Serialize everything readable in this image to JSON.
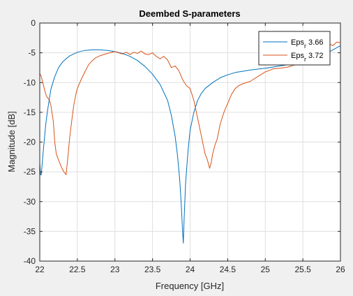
{
  "chart_data": {
    "type": "line",
    "title": "Deembed S-parameters",
    "xlabel": "Frequency [GHz]",
    "ylabel": "Magnitude [dB]",
    "xlim": [
      22,
      26
    ],
    "ylim": [
      -40,
      0
    ],
    "xticks": [
      22,
      22.5,
      23,
      23.5,
      24,
      24.5,
      25,
      25.5,
      26
    ],
    "yticks": [
      0,
      -5,
      -10,
      -15,
      -20,
      -25,
      -30,
      -35,
      -40
    ],
    "xtick_labels": [
      "22",
      "22.5",
      "23",
      "23.5",
      "24",
      "24.5",
      "25",
      "25.5",
      "26"
    ],
    "ytick_labels": [
      "0",
      "-5",
      "-10",
      "-15",
      "-20",
      "-25",
      "-30",
      "-35",
      "-40"
    ],
    "grid": true,
    "legend_position": "top-right",
    "series": [
      {
        "name_main": "Eps",
        "name_sub": "r",
        "name_value": " 3.66",
        "color": "#0072BD",
        "x": [
          22,
          22.01,
          22.02,
          22.03,
          22.05,
          22.08,
          22.1,
          22.13,
          22.15,
          22.2,
          22.25,
          22.3,
          22.35,
          22.4,
          22.5,
          22.6,
          22.7,
          22.8,
          22.9,
          23,
          23.1,
          23.2,
          23.3,
          23.4,
          23.5,
          23.6,
          23.7,
          23.75,
          23.8,
          23.83,
          23.86,
          23.88,
          23.9,
          23.91,
          23.92,
          23.94,
          23.96,
          23.98,
          24,
          24.05,
          24.1,
          24.15,
          24.2,
          24.3,
          24.4,
          24.5,
          24.6,
          24.7,
          24.8,
          25,
          25.2,
          25.4,
          25.6,
          25.8,
          26
        ],
        "y": [
          -23.5,
          -25.5,
          -25.5,
          -24,
          -21,
          -17,
          -15,
          -12.5,
          -11,
          -9,
          -7.5,
          -6.6,
          -6,
          -5.5,
          -4.9,
          -4.6,
          -4.5,
          -4.5,
          -4.6,
          -4.8,
          -5.1,
          -5.6,
          -6.3,
          -7.3,
          -8.6,
          -10.3,
          -13,
          -15.5,
          -19,
          -22,
          -26,
          -30,
          -35,
          -37,
          -33,
          -27,
          -23.5,
          -20.5,
          -18,
          -15,
          -13,
          -11.8,
          -11,
          -10,
          -9.2,
          -8.7,
          -8.3,
          -8.1,
          -7.9,
          -7.6,
          -7.2,
          -6.8,
          -6.2,
          -5.2,
          -3.8
        ]
      },
      {
        "name_main": "Eps",
        "name_sub": "r",
        "name_value": " 3.72",
        "color": "#D95319",
        "x": [
          22,
          22.02,
          22.05,
          22.08,
          22.1,
          22.13,
          22.15,
          22.18,
          22.2,
          22.22,
          22.25,
          22.28,
          22.3,
          22.32,
          22.34,
          22.35,
          22.37,
          22.4,
          22.43,
          22.45,
          22.48,
          22.5,
          22.55,
          22.6,
          22.65,
          22.7,
          22.75,
          22.8,
          22.9,
          23,
          23.05,
          23.1,
          23.15,
          23.2,
          23.25,
          23.3,
          23.35,
          23.4,
          23.45,
          23.5,
          23.55,
          23.6,
          23.65,
          23.7,
          23.75,
          23.8,
          23.85,
          23.9,
          23.95,
          24,
          24.05,
          24.1,
          24.15,
          24.2,
          24.23,
          24.26,
          24.28,
          24.3,
          24.33,
          24.36,
          24.4,
          24.45,
          24.5,
          24.55,
          24.6,
          24.65,
          24.7,
          24.8,
          24.9,
          25,
          25.05,
          25.1,
          25.2,
          25.3,
          25.4,
          25.5,
          25.6,
          25.7,
          25.8,
          25.85,
          25.9,
          25.95,
          26
        ],
        "y": [
          -8.5,
          -9,
          -10.5,
          -12,
          -12.5,
          -13,
          -14,
          -16.5,
          -20,
          -22,
          -23,
          -24,
          -24.5,
          -25,
          -25.3,
          -25.5,
          -23,
          -19,
          -16,
          -14,
          -12,
          -11,
          -9.5,
          -8.2,
          -7,
          -6.3,
          -5.8,
          -5.5,
          -5.1,
          -4.8,
          -5,
          -5.2,
          -4.9,
          -5.3,
          -4.9,
          -5.1,
          -4.7,
          -5.2,
          -5.3,
          -5,
          -5.6,
          -6,
          -5.6,
          -6.2,
          -7.5,
          -7.2,
          -8,
          -9.5,
          -10.5,
          -11,
          -13,
          -16,
          -19,
          -22,
          -23,
          -24.4,
          -23.5,
          -22,
          -20.5,
          -19.5,
          -17,
          -15,
          -13.5,
          -12,
          -11,
          -10.5,
          -10.2,
          -9.8,
          -9,
          -8.2,
          -8,
          -7.7,
          -7.6,
          -7.4,
          -7,
          -6.7,
          -6,
          -5,
          -4,
          -3.5,
          -3.8,
          -3.2,
          -3.3
        ]
      }
    ]
  }
}
